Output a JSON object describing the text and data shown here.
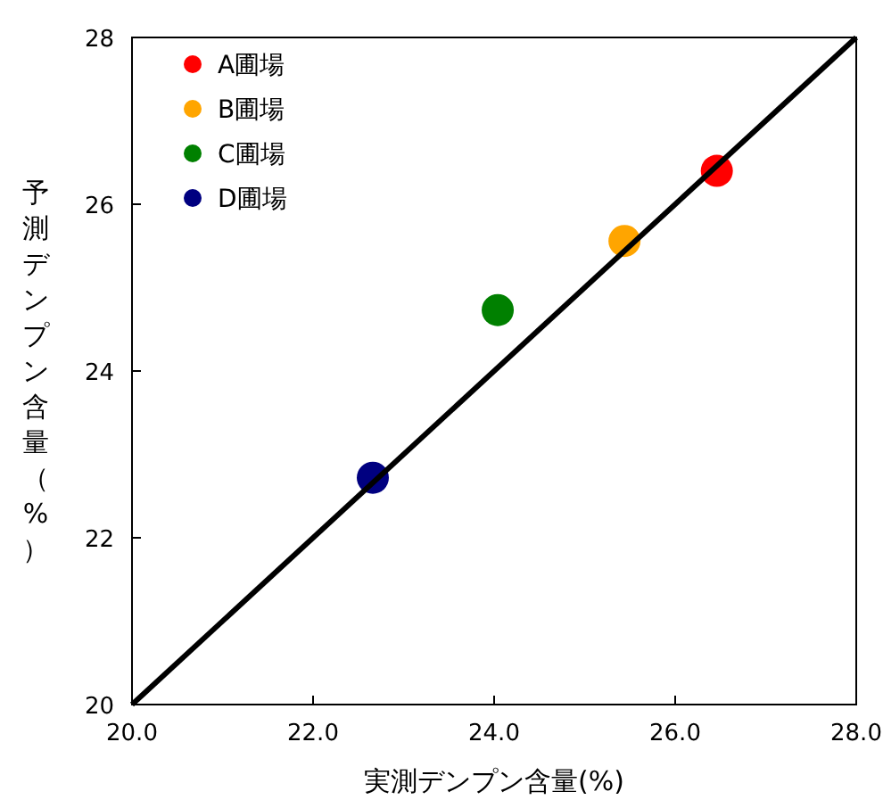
{
  "chart_data": {
    "type": "scatter",
    "xlabel": "実測デンプン含量(%)",
    "ylabel": "予測デンプン含量（%）",
    "xlim": [
      20,
      28
    ],
    "ylim": [
      20,
      28
    ],
    "xticks": [
      {
        "value": 20,
        "label": "20.0"
      },
      {
        "value": 22,
        "label": "22.0"
      },
      {
        "value": 24,
        "label": "24.0"
      },
      {
        "value": 26,
        "label": "26.0"
      },
      {
        "value": 28,
        "label": "28.0"
      }
    ],
    "yticks": [
      20,
      22,
      24,
      26,
      28
    ],
    "legend": "top left",
    "marker": "circle",
    "series": [
      {
        "name": "A圃場",
        "color": "#ff0000",
        "x": [
          26.46
        ],
        "values": [
          26.4
        ]
      },
      {
        "name": "B圃場",
        "color": "#ffa500",
        "x": [
          25.44
        ],
        "values": [
          25.56
        ]
      },
      {
        "name": "C圃場",
        "color": "#008000",
        "x": [
          24.04
        ],
        "values": [
          24.73
        ]
      },
      {
        "name": "D圃場",
        "color": "#000080",
        "x": [
          22.66
        ],
        "values": [
          22.72
        ]
      },
      {
        "type": "line",
        "color": "#000000",
        "x": [
          20,
          28
        ],
        "values": [
          20,
          28
        ],
        "marker": "none",
        "line_style": "solid"
      }
    ]
  }
}
